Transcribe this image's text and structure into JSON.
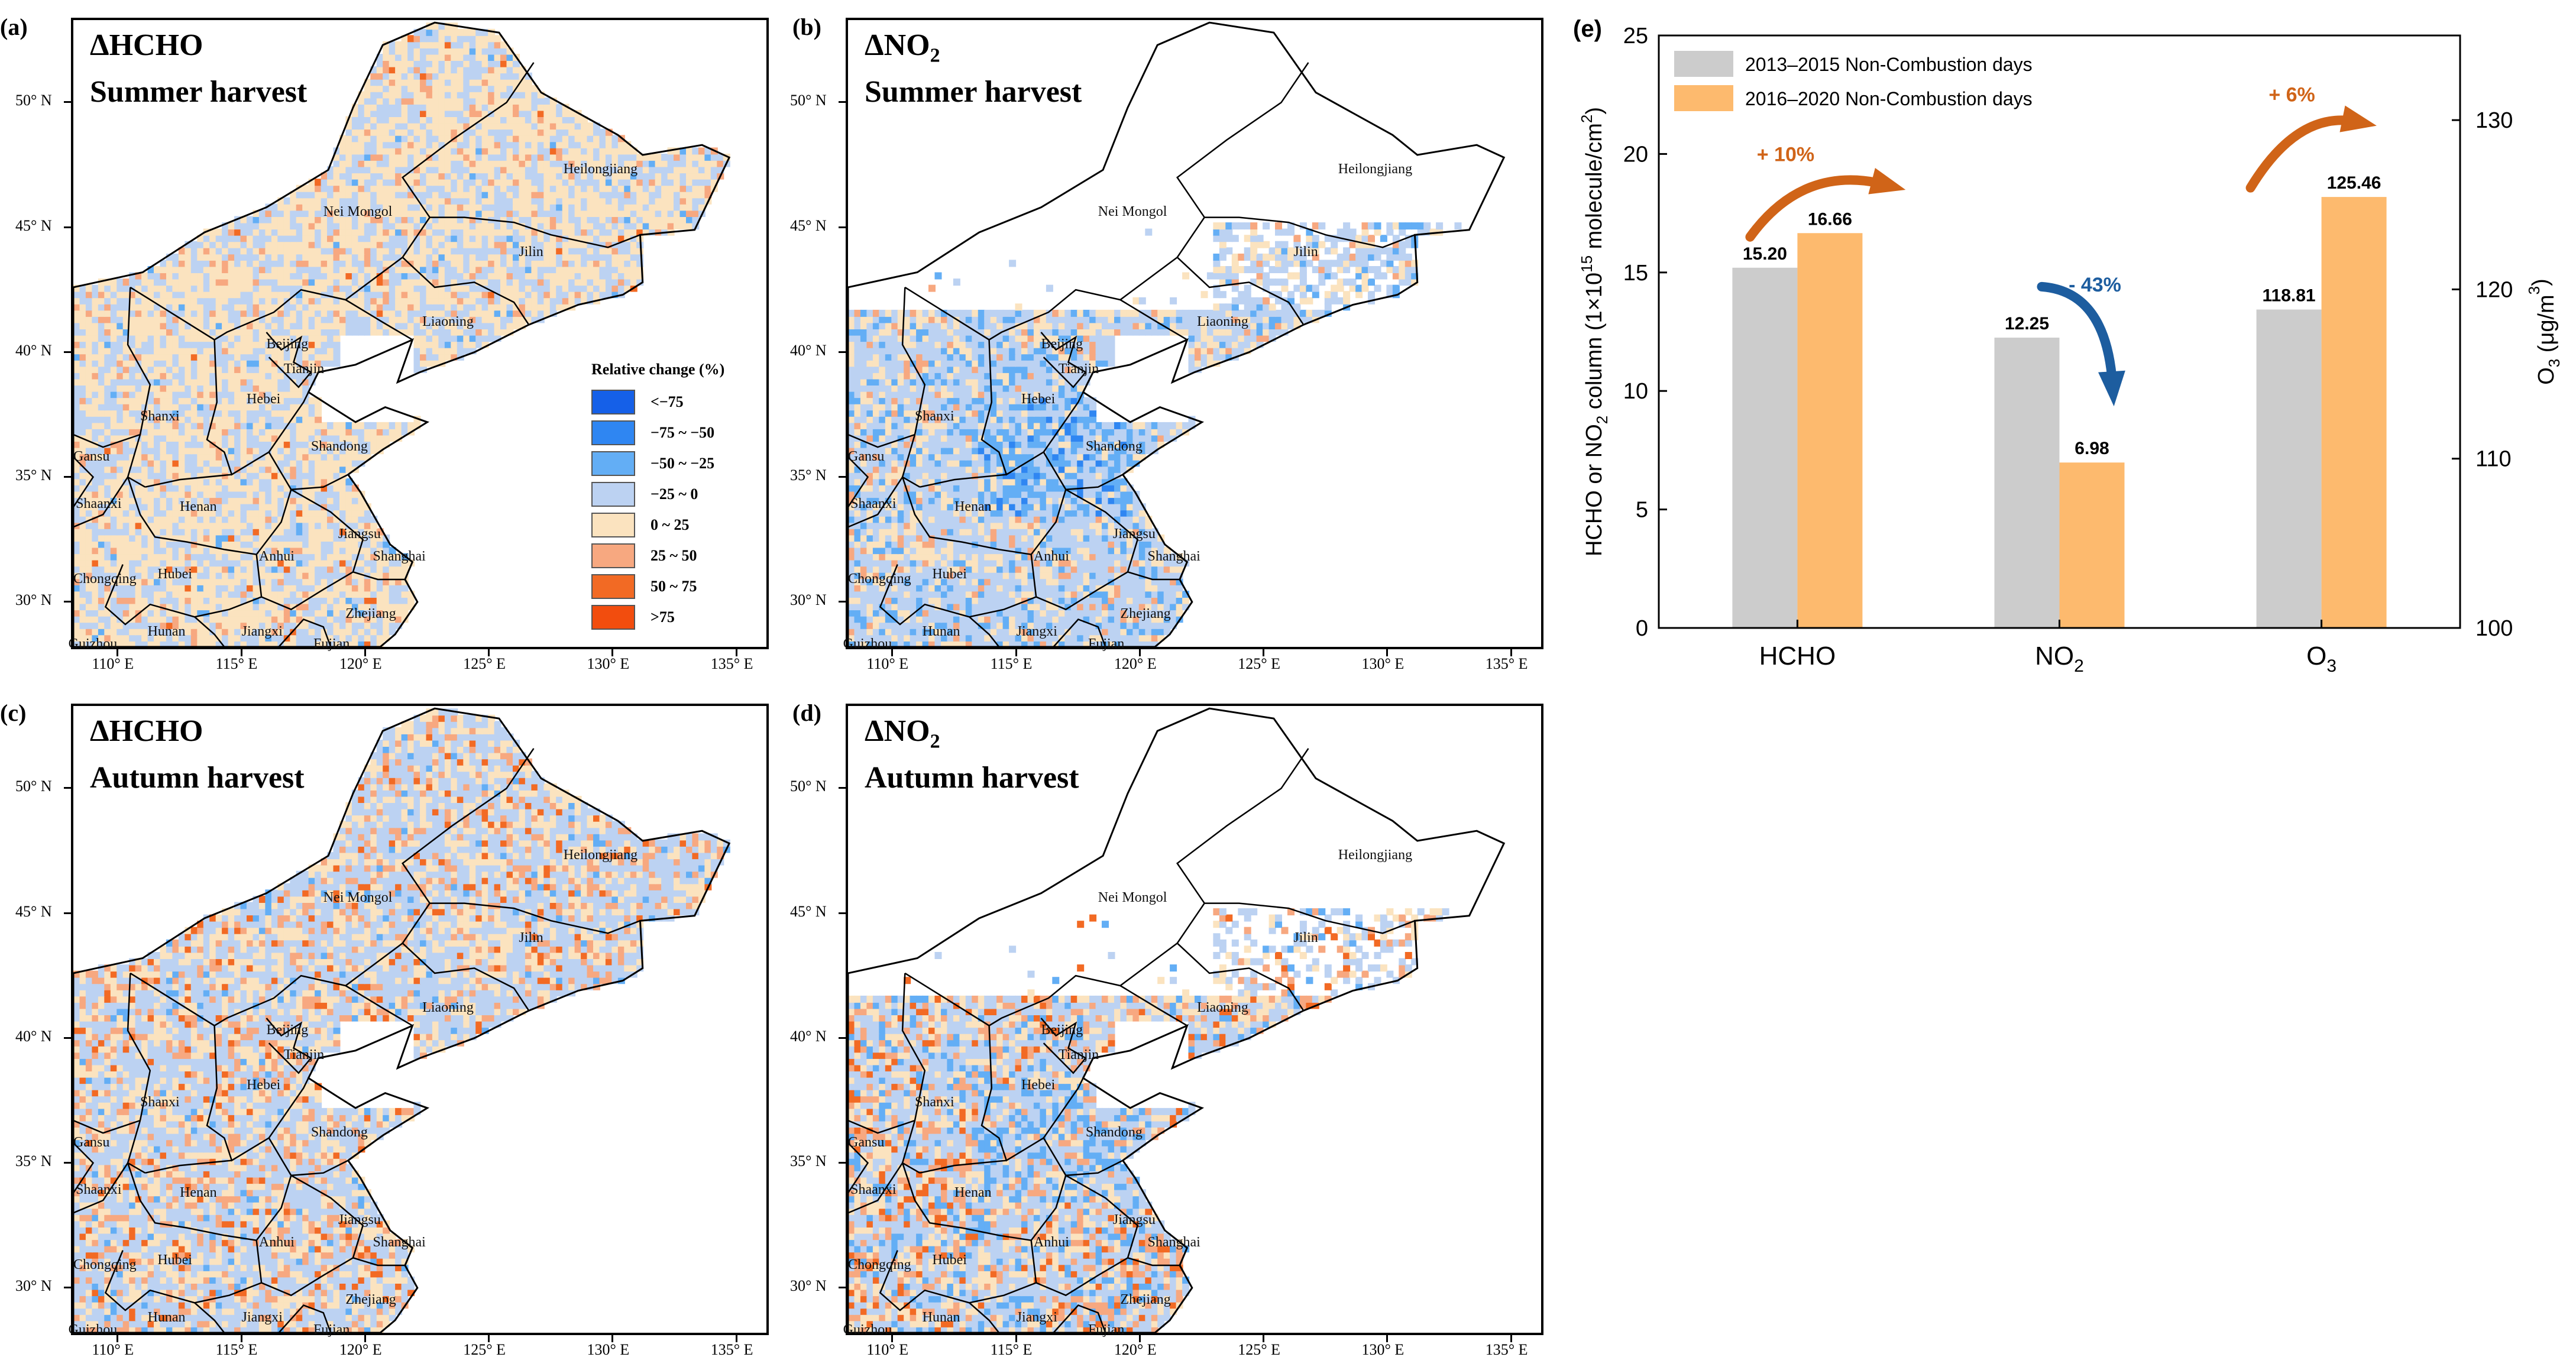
{
  "panels": [
    {
      "id": "a",
      "label": "(a)",
      "title_main": "ΔHCHO",
      "title_sub": "",
      "title_line2": "Summer harvest",
      "pattern": "hcho_summer"
    },
    {
      "id": "b",
      "label": "(b)",
      "title_main": "ΔNO",
      "title_sub": "2",
      "title_line2": "Summer harvest",
      "pattern": "no2_summer"
    },
    {
      "id": "c",
      "label": "(c)",
      "title_main": "ΔHCHO",
      "title_sub": "",
      "title_line2": "Autumn harvest",
      "pattern": "hcho_autumn"
    },
    {
      "id": "d",
      "label": "(d)",
      "title_main": "ΔNO",
      "title_sub": "2",
      "title_line2": "Autumn harvest",
      "pattern": "no2_autumn"
    }
  ],
  "map_axes": {
    "lat_ticks": [
      "50° N",
      "45° N",
      "40° N",
      "35° N",
      "30° N"
    ],
    "lon_ticks": [
      "110° E",
      "115° E",
      "120° E",
      "125° E",
      "130° E",
      "135° E"
    ]
  },
  "province_labels": {
    "heilongjiang": "Heilongjiang",
    "nei_mongol": "Nei Mongol",
    "jilin": "Jilin",
    "liaoning": "Liaoning",
    "beijing": "Beijing",
    "tianjin": "Tianjin",
    "hebei": "Hebei",
    "shanxi": "Shanxi",
    "shandong": "Shandong",
    "gansu": "Gansu",
    "shaanxi": "Shaanxi",
    "henan": "Henan",
    "jiangsu": "Jiangsu",
    "shanghai": "Shanghai",
    "anhui": "Anhui",
    "hubei": "Hubei",
    "chongqing": "Chongqing",
    "hunan": "Hunan",
    "jiangxi": "Jiangxi",
    "zhejiang": "Zhejiang",
    "fujian": "Fujian",
    "guizhou": "Guizhou"
  },
  "legend": {
    "title": "Relative change (%)",
    "items": [
      {
        "label": "<−75",
        "color": "#1560e8"
      },
      {
        "label": "−75 ~ −50",
        "color": "#2f86f2"
      },
      {
        "label": "−50 ~ −25",
        "color": "#63aef5"
      },
      {
        "label": "−25 ~ 0",
        "color": "#bcd2f2"
      },
      {
        "label": "0 ~ 25",
        "color": "#fbe3bf"
      },
      {
        "label": "25 ~ 50",
        "color": "#f7a880"
      },
      {
        "label": "50 ~ 75",
        "color": "#f26a24"
      },
      {
        "label": ">75",
        "color": "#f24d0e"
      }
    ]
  },
  "chart_data": {
    "label": "(e)",
    "type": "bar",
    "categories": [
      "HCHO",
      "NO2",
      "O3"
    ],
    "series": [
      {
        "name": "2013–2015 Non-Combustion days",
        "color": "#cccccc",
        "values": [
          15.2,
          12.25,
          118.81
        ],
        "value_labels": [
          "15.20",
          "12.25",
          "118.81"
        ]
      },
      {
        "name": "2016–2020 Non-Combustion days",
        "color": "#fdba6e",
        "values": [
          16.66,
          6.98,
          125.46
        ],
        "value_labels": [
          "16.66",
          "6.98",
          "125.46"
        ]
      }
    ],
    "y_left": {
      "label": "HCHO or NO2 column (1×10^15 molecule/cm^2)",
      "range": [
        0,
        25
      ],
      "ticks": [
        "0",
        "5",
        "10",
        "15",
        "20",
        "25"
      ]
    },
    "y_right": {
      "label": "O3 (μg/m3)",
      "range": [
        100,
        135
      ],
      "ticks": [
        "100",
        "110",
        "120",
        "130"
      ]
    },
    "annotations": [
      {
        "text": "+ 10%",
        "color": "#d06418",
        "category": "HCHO",
        "direction": "up"
      },
      {
        "text": "- 43%",
        "color": "#1d5d9f",
        "category": "NO2",
        "direction": "down"
      },
      {
        "text": "+ 6%",
        "color": "#d06418",
        "category": "O3",
        "direction": "up"
      }
    ],
    "legend_position": "top-left"
  }
}
